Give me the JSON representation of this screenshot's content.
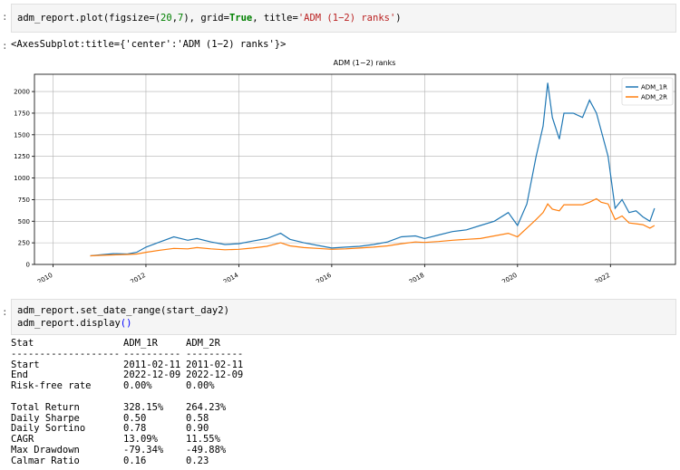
{
  "cell1": {
    "prompt": ":",
    "code": {
      "p1": "adm_report.plot(figsize=(",
      "n1": "20",
      "p2": ",",
      "n2": "7",
      "p3": "), grid=",
      "kw": "True",
      "p4": ", title=",
      "s": "'ADM (1−2) ranks'",
      "p5": ")"
    }
  },
  "output1": {
    "prompt": ":",
    "text": "<AxesSubplot:title={'center':'ADM (1−2) ranks'}>"
  },
  "chart_data": {
    "type": "line",
    "title": "ADM (1−2) ranks",
    "xlabel": "",
    "ylabel": "",
    "xlim": [
      2009.6,
      2023.4
    ],
    "ylim": [
      0,
      2200
    ],
    "grid": true,
    "legend_placement": "top-right",
    "x_ticks": [
      2010,
      2012,
      2014,
      2016,
      2018,
      2020,
      2022
    ],
    "x_tick_labels": [
      "2010",
      "2012",
      "2014",
      "2016",
      "2018",
      "2020",
      "2022"
    ],
    "y_ticks": [
      0,
      250,
      500,
      750,
      1000,
      1250,
      1500,
      1750,
      2000
    ],
    "y_tick_labels": [
      "0",
      "250",
      "500",
      "750",
      "1000",
      "1250",
      "1500",
      "1750",
      "2000"
    ],
    "series": [
      {
        "name": "ADM_1R",
        "color": "#1f77b4",
        "x": [
          2010.8,
          2011.0,
          2011.3,
          2011.6,
          2011.8,
          2012.0,
          2012.3,
          2012.6,
          2012.9,
          2013.1,
          2013.4,
          2013.7,
          2014.0,
          2014.3,
          2014.6,
          2014.9,
          2015.1,
          2015.4,
          2015.7,
          2016.0,
          2016.3,
          2016.6,
          2016.9,
          2017.2,
          2017.5,
          2017.8,
          2018.0,
          2018.3,
          2018.6,
          2018.9,
          2019.2,
          2019.5,
          2019.8,
          2020.0,
          2020.2,
          2020.4,
          2020.55,
          2020.65,
          2020.75,
          2020.9,
          2021.0,
          2021.2,
          2021.4,
          2021.55,
          2021.7,
          2021.8,
          2021.95,
          2022.1,
          2022.25,
          2022.4,
          2022.55,
          2022.7,
          2022.85,
          2022.95
        ],
        "values": [
          100,
          110,
          125,
          120,
          140,
          200,
          260,
          320,
          280,
          300,
          260,
          230,
          240,
          270,
          300,
          360,
          290,
          250,
          220,
          190,
          200,
          210,
          230,
          260,
          320,
          330,
          300,
          340,
          380,
          400,
          450,
          500,
          600,
          450,
          700,
          1250,
          1600,
          2100,
          1700,
          1450,
          1750,
          1750,
          1700,
          1900,
          1750,
          1550,
          1250,
          650,
          750,
          600,
          620,
          550,
          500,
          650
        ]
      },
      {
        "name": "ADM_2R",
        "color": "#ff7f0e",
        "x": [
          2010.8,
          2011.0,
          2011.3,
          2011.6,
          2011.8,
          2012.0,
          2012.3,
          2012.6,
          2012.9,
          2013.1,
          2013.4,
          2013.7,
          2014.0,
          2014.3,
          2014.6,
          2014.9,
          2015.1,
          2015.4,
          2015.7,
          2016.0,
          2016.3,
          2016.6,
          2016.9,
          2017.2,
          2017.5,
          2017.8,
          2018.0,
          2018.3,
          2018.6,
          2018.9,
          2019.2,
          2019.5,
          2019.8,
          2020.0,
          2020.2,
          2020.4,
          2020.55,
          2020.65,
          2020.75,
          2020.9,
          2021.0,
          2021.2,
          2021.4,
          2021.55,
          2021.7,
          2021.8,
          2021.95,
          2022.1,
          2022.25,
          2022.4,
          2022.55,
          2022.7,
          2022.85,
          2022.95
        ],
        "values": [
          100,
          105,
          110,
          115,
          120,
          140,
          165,
          185,
          180,
          195,
          180,
          170,
          175,
          190,
          210,
          250,
          215,
          195,
          185,
          175,
          180,
          190,
          200,
          215,
          240,
          260,
          255,
          265,
          280,
          290,
          300,
          330,
          360,
          320,
          420,
          520,
          600,
          700,
          640,
          620,
          690,
          690,
          690,
          720,
          760,
          720,
          700,
          520,
          560,
          480,
          470,
          460,
          420,
          450
        ]
      }
    ]
  },
  "cell2": {
    "prompt": ":",
    "line1": {
      "a": "adm_report.set_date_range(start_day2)"
    },
    "line2": {
      "a": "adm_report.display",
      "b": "()"
    }
  },
  "stats": {
    "header": [
      "Stat",
      "ADM_1R",
      "ADM_2R"
    ],
    "separator": [
      "-------------------",
      "----------",
      "----------"
    ],
    "rows1": [
      [
        "Start",
        "2011-02-11",
        "2011-02-11"
      ],
      [
        "End",
        "2022-12-09",
        "2022-12-09"
      ],
      [
        "Risk-free rate",
        "0.00%",
        "0.00%"
      ]
    ],
    "rows2": [
      [
        "Total Return",
        "328.15%",
        "264.23%"
      ],
      [
        "Daily Sharpe",
        "0.50",
        "0.58"
      ],
      [
        "Daily Sortino",
        "0.78",
        "0.90"
      ],
      [
        "CAGR",
        "13.09%",
        "11.55%"
      ],
      [
        "Max Drawdown",
        "-79.34%",
        "-49.88%"
      ],
      [
        "Calmar Ratio",
        "0.16",
        "0.23"
      ]
    ]
  }
}
